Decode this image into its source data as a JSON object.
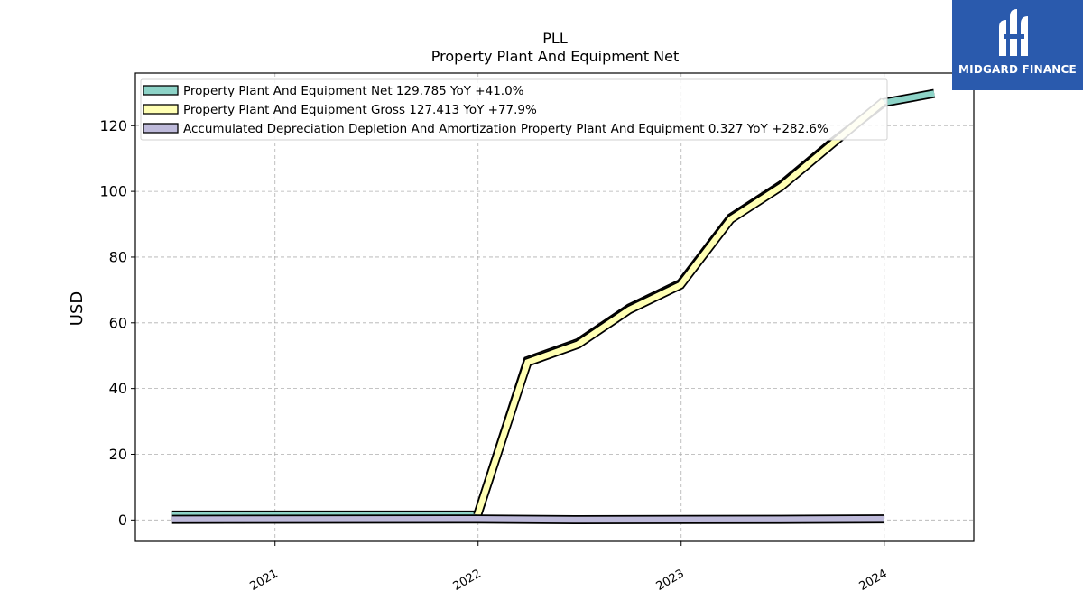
{
  "chart_data": {
    "type": "line",
    "title": "PLL",
    "subtitle": "Property Plant And Equipment Net",
    "ylabel": "USD",
    "xlabel": "",
    "ylim": [
      -6.5,
      136
    ],
    "xlim": [
      "2020-04-25",
      "2024-06-10"
    ],
    "yticks": [
      0,
      20,
      40,
      60,
      80,
      100,
      120
    ],
    "xticks": [
      "2021-01-01",
      "2022-01-01",
      "2023-01-01",
      "2024-01-01"
    ],
    "xtick_labels": [
      "2021",
      "2022",
      "2023",
      "2024"
    ],
    "grid": true,
    "legend_position": "upper-left",
    "series": [
      {
        "name": "Property Plant And Equipment Net",
        "legend_label": "Property Plant And Equipment Net  129.785 YoY +41.0%",
        "color": "#8dd3c7",
        "points": [
          [
            "2020-06-30",
            1.5
          ],
          [
            "2020-09-30",
            1.5
          ],
          [
            "2020-12-31",
            1.5
          ],
          [
            "2021-03-31",
            1.5
          ],
          [
            "2021-06-30",
            1.5
          ],
          [
            "2021-09-30",
            1.5
          ],
          [
            "2021-12-31",
            1.5
          ],
          [
            "2022-03-31",
            48.5
          ],
          [
            "2022-06-30",
            54
          ],
          [
            "2022-09-30",
            64.5
          ],
          [
            "2022-12-31",
            72
          ],
          [
            "2023-03-31",
            92
          ],
          [
            "2023-06-30",
            102
          ],
          [
            "2023-09-30",
            115
          ],
          [
            "2023-12-31",
            127
          ],
          [
            "2024-03-31",
            129.785
          ]
        ]
      },
      {
        "name": "Property Plant And Equipment Gross",
        "legend_label": "Property Plant And Equipment Gross  127.413 YoY +77.9%",
        "color": "#ffffb3",
        "points": [
          [
            "2021-12-31",
            1.5
          ],
          [
            "2022-03-31",
            48
          ],
          [
            "2022-06-30",
            53.5
          ],
          [
            "2022-09-30",
            64
          ],
          [
            "2022-12-31",
            71.5
          ],
          [
            "2023-03-31",
            91.5
          ],
          [
            "2023-06-30",
            101.5
          ],
          [
            "2023-09-30",
            114.5
          ],
          [
            "2023-12-31",
            127.413
          ]
        ]
      },
      {
        "name": "Accumulated Depreciation Depletion And Amortization Property Plant And Equipment",
        "legend_label": "Accumulated Depreciation Depletion And Amortization Property Plant And Equipment  0.327 YoY +282.6%",
        "color": "#bebada",
        "points": [
          [
            "2020-06-30",
            0.2
          ],
          [
            "2021-12-31",
            0.3
          ],
          [
            "2022-06-30",
            0.1
          ],
          [
            "2023-06-30",
            0.2
          ],
          [
            "2023-12-31",
            0.327
          ]
        ]
      }
    ]
  },
  "logo": {
    "text": "MIDGARD FINANCE",
    "icon": "midgard-logo-icon",
    "background": "#2a5aad"
  }
}
